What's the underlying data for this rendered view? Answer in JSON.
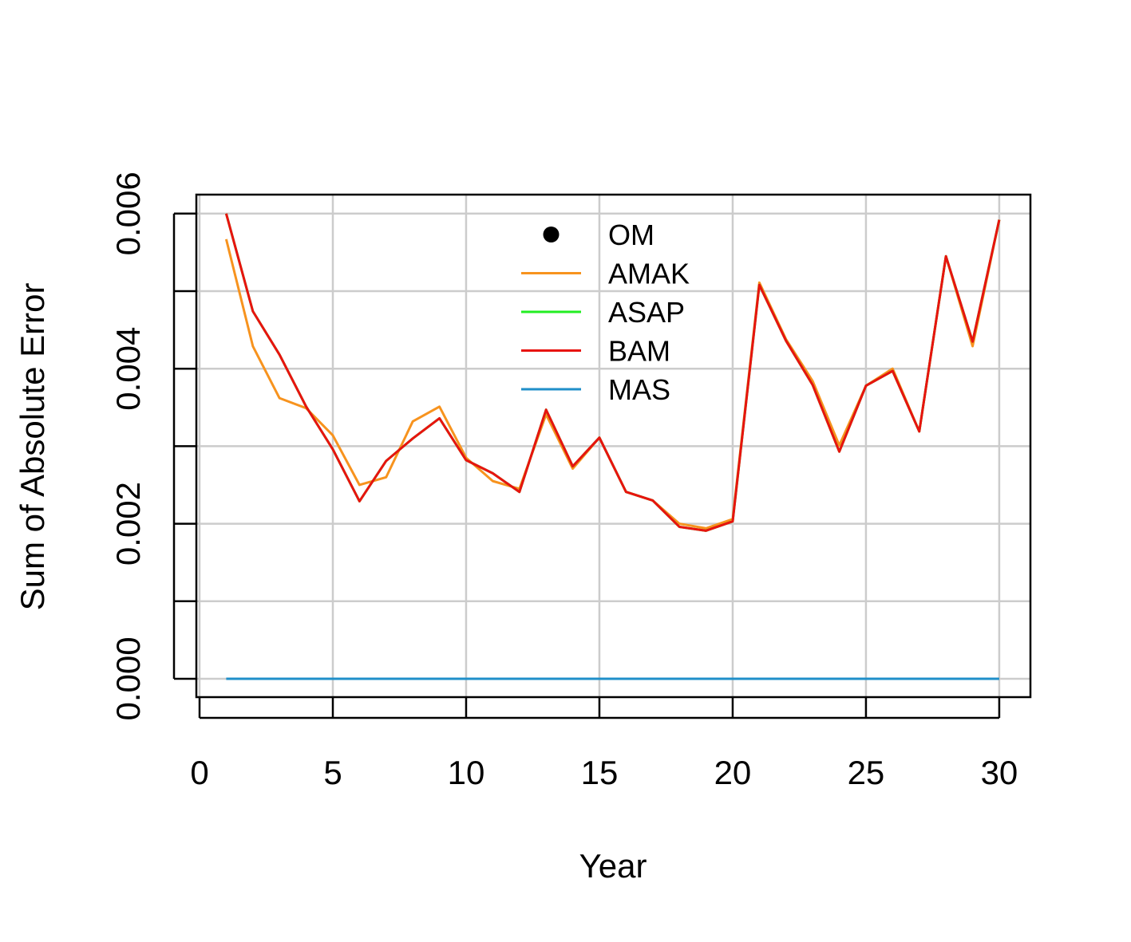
{
  "chart_data": {
    "type": "line",
    "x_label": "Year",
    "y_label": "Sum of Absolute Error",
    "x": [
      1,
      2,
      3,
      4,
      5,
      6,
      7,
      8,
      9,
      10,
      11,
      12,
      13,
      14,
      15,
      16,
      17,
      18,
      19,
      20,
      21,
      22,
      23,
      24,
      25,
      26,
      27,
      28,
      29,
      30
    ],
    "series": [
      {
        "name": "OM",
        "color": "#000000",
        "marker": "point",
        "values": [
          null,
          null,
          null,
          null,
          null,
          null,
          null,
          null,
          null,
          null,
          null,
          null,
          null,
          null,
          null,
          null,
          null,
          null,
          null,
          null,
          null,
          null,
          null,
          null,
          null,
          null,
          null,
          null,
          null,
          null
        ]
      },
      {
        "name": "AMAK",
        "color": "#f7931e",
        "values": [
          0.00567,
          0.00429,
          0.00362,
          0.00349,
          0.00314,
          0.0025,
          0.0026,
          0.00332,
          0.00351,
          0.00285,
          0.00255,
          0.00245,
          0.00341,
          0.00271,
          0.00311,
          0.00241,
          0.0023,
          0.002,
          0.00194,
          0.00206,
          0.00511,
          0.00438,
          0.00384,
          0.00301,
          0.00378,
          0.004,
          0.00319,
          0.00545,
          0.00429,
          0.00592
        ]
      },
      {
        "name": "ASAP",
        "color": "#22ee22",
        "values": [
          0.006,
          0.00474,
          0.00418,
          0.00351,
          0.00296,
          0.00229,
          0.00281,
          0.0031,
          0.00336,
          0.00282,
          0.00265,
          0.00241,
          0.00347,
          0.00274,
          0.00311,
          0.00241,
          0.0023,
          0.00196,
          0.00191,
          0.00203,
          0.00508,
          0.00436,
          0.00379,
          0.00293,
          0.00378,
          0.00397,
          0.00319,
          0.00545,
          0.00435,
          0.00592
        ]
      },
      {
        "name": "BAM",
        "color": "#e8130f",
        "values": [
          0.006,
          0.00474,
          0.00418,
          0.00351,
          0.00296,
          0.00229,
          0.00281,
          0.0031,
          0.00336,
          0.00282,
          0.00265,
          0.00241,
          0.00347,
          0.00274,
          0.00311,
          0.00241,
          0.0023,
          0.00196,
          0.00191,
          0.00203,
          0.00508,
          0.00436,
          0.00379,
          0.00293,
          0.00378,
          0.00397,
          0.00319,
          0.00545,
          0.00435,
          0.00592
        ]
      },
      {
        "name": "MAS",
        "color": "#1f8fc9",
        "values": [
          0,
          0,
          0,
          0,
          0,
          0,
          0,
          0,
          0,
          0,
          0,
          0,
          0,
          0,
          0,
          0,
          0,
          0,
          0,
          0,
          0,
          0,
          0,
          0,
          0,
          0,
          0,
          0,
          0,
          0
        ]
      }
    ],
    "xlim": [
      -0.12,
      31.17
    ],
    "ylim": [
      -0.000237,
      0.006245
    ],
    "xticks": [
      0,
      5,
      10,
      15,
      20,
      25,
      30
    ],
    "yticks": [
      {
        "value": 0,
        "label": "0.000"
      },
      {
        "value": 0.001,
        "label": null
      },
      {
        "value": 0.002,
        "label": "0.002"
      },
      {
        "value": 0.003,
        "label": null
      },
      {
        "value": 0.004,
        "label": "0.004"
      },
      {
        "value": 0.005,
        "label": null
      },
      {
        "value": 0.006,
        "label": "0.006"
      }
    ],
    "grid": true,
    "legend": "top"
  }
}
